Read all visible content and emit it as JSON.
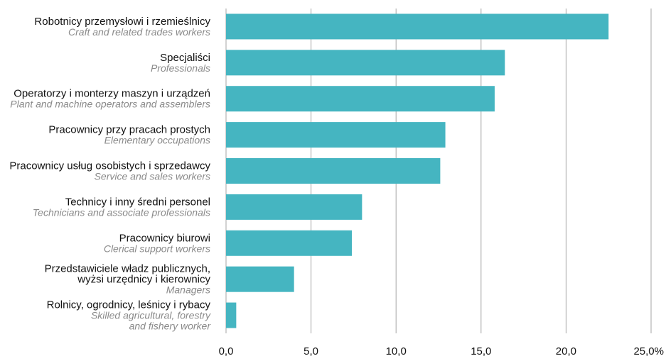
{
  "chart_data": {
    "type": "bar",
    "orientation": "horizontal",
    "categories": [
      {
        "lines_pl": [
          "Robotnicy przemysłowi i rzemieślnicy"
        ],
        "lines_en": [
          "Craft and related trades workers"
        ]
      },
      {
        "lines_pl": [
          "Specjaliści"
        ],
        "lines_en": [
          "Professionals"
        ]
      },
      {
        "lines_pl": [
          "Operatorzy i monterzy maszyn i urządzeń"
        ],
        "lines_en": [
          "Plant and machine operators and assemblers"
        ]
      },
      {
        "lines_pl": [
          "Pracownicy przy pracach prostych"
        ],
        "lines_en": [
          "Elementary occupations"
        ]
      },
      {
        "lines_pl": [
          "Pracownicy usług osobistych i sprzedawcy"
        ],
        "lines_en": [
          "Service and sales workers"
        ]
      },
      {
        "lines_pl": [
          "Technicy i inny średni personel"
        ],
        "lines_en": [
          "Technicians and associate professionals"
        ]
      },
      {
        "lines_pl": [
          "Pracownicy biurowi"
        ],
        "lines_en": [
          "Clerical support workers"
        ]
      },
      {
        "lines_pl": [
          "Przedstawiciele władz publicznych,",
          "wyżsi urzędnicy i kierownicy"
        ],
        "lines_en": [
          "Managers"
        ]
      },
      {
        "lines_pl": [
          "Rolnicy, ogrodnicy, leśnicy i rybacy"
        ],
        "lines_en": [
          "Skilled agricultural, forestry",
          "and fishery worker"
        ]
      }
    ],
    "values": [
      22.5,
      16.4,
      15.8,
      12.9,
      12.6,
      8.0,
      7.4,
      4.0,
      0.6
    ],
    "xlim": [
      0,
      25
    ],
    "ticks": [
      0,
      5,
      10,
      15,
      20,
      25
    ],
    "tick_labels": [
      "0,0",
      "5,0",
      "10,0",
      "15,0",
      "20,0",
      "25,0%"
    ],
    "grid": true,
    "bar_color": "#45b5c1",
    "grid_color": "#a6a6a6"
  }
}
